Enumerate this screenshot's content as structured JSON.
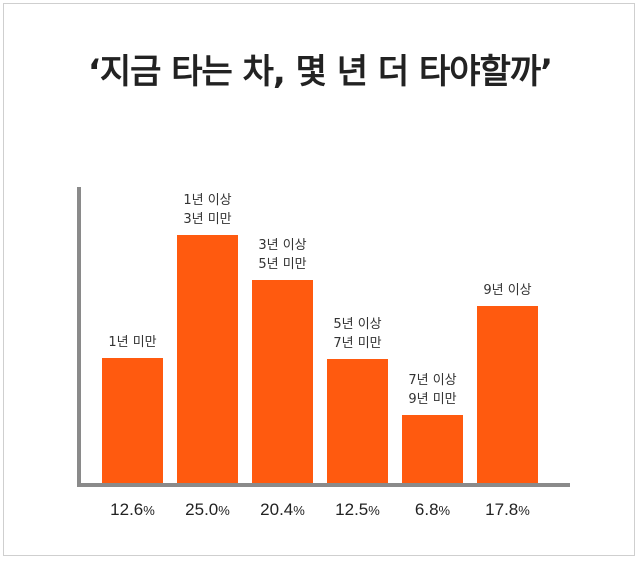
{
  "title": "‘지금 타는 차, 몇 년 더 타야할까’",
  "colors": {
    "bar": "#ff5a0f",
    "axis": "#8a8a8a",
    "text": "#222222"
  },
  "chart_data": {
    "type": "bar",
    "title": "‘지금 타는 차, 몇 년 더 타야할까’",
    "unit": "%",
    "categories": [
      [
        "1년 미만"
      ],
      [
        "1년 이상",
        "3년 미만"
      ],
      [
        "3년 이상",
        "5년 미만"
      ],
      [
        "5년 이상",
        "7년 미만"
      ],
      [
        "7년 이상",
        "9년 미만"
      ],
      [
        "9년 이상"
      ]
    ],
    "values": [
      12.6,
      25.0,
      20.4,
      12.5,
      6.8,
      17.8
    ],
    "value_labels": [
      "12.6",
      "25.0",
      "20.4",
      "12.5",
      "6.8",
      "17.8"
    ],
    "ylim": [
      0,
      27.2
    ],
    "grid": false,
    "legend": "none"
  }
}
